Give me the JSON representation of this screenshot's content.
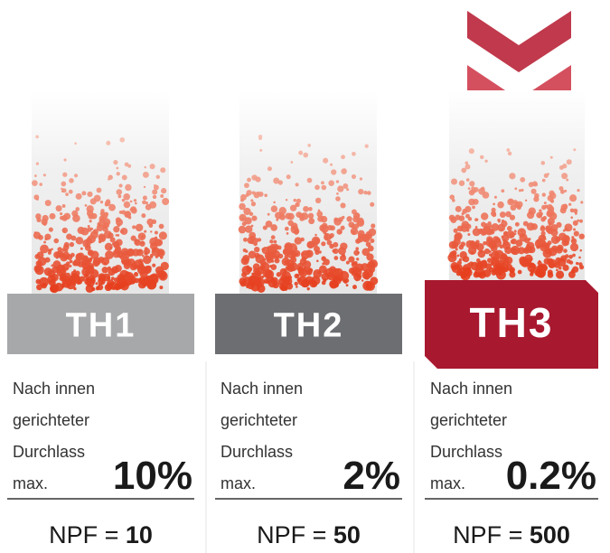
{
  "columns": [
    {
      "label": "TH1",
      "description": [
        "Nach innen",
        "gerichteter",
        "Durchlass",
        "max."
      ],
      "leakage": "10%",
      "npf_label": "NPF =",
      "npf_value": "10"
    },
    {
      "label": "TH2",
      "description": [
        "Nach innen",
        "gerichteter",
        "Durchlass",
        "max."
      ],
      "leakage": "2%",
      "npf_label": "NPF =",
      "npf_value": "50"
    },
    {
      "label": "TH3",
      "description": [
        "Nach innen",
        "gerichteter",
        "Durchlass",
        "max."
      ],
      "leakage": "0.2%",
      "npf_label": "NPF =",
      "npf_value": "500"
    }
  ]
}
